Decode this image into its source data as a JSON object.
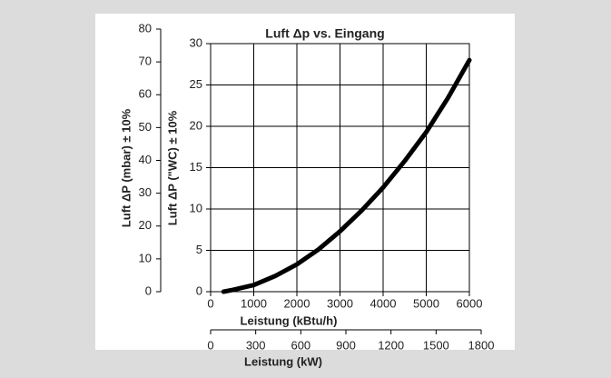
{
  "chart_data": {
    "type": "line",
    "title": "Luft Δp vs. Eingang",
    "xlabel": "Leistung (kBtu/h)",
    "ylabel": "Luft ΔP (\"WC) ± 10%",
    "y2label": "Luft ΔP (mbar) ± 10%",
    "x2label": "Leistung (kW)",
    "x": [
      300,
      500,
      1000,
      1500,
      2000,
      2500,
      3000,
      3500,
      4000,
      4500,
      5000,
      5500,
      6000
    ],
    "values": [
      0,
      0.2,
      0.8,
      1.9,
      3.3,
      5.1,
      7.3,
      9.8,
      12.6,
      15.8,
      19.3,
      23.4,
      28
    ],
    "color": "#000000",
    "xlim": [
      0,
      6000
    ],
    "xticks": [
      0,
      1000,
      2000,
      3000,
      4000,
      5000,
      6000
    ],
    "ylim": [
      0,
      30
    ],
    "yticks": [
      0,
      5,
      10,
      15,
      20,
      25,
      30
    ],
    "y2lim": [
      0,
      80
    ],
    "y2ticks": [
      0,
      10,
      20,
      30,
      40,
      50,
      60,
      70,
      80
    ],
    "x2lim": [
      0,
      1800
    ],
    "x2ticks": [
      0,
      300,
      600,
      900,
      1200,
      1500,
      1800
    ],
    "grid": true
  }
}
